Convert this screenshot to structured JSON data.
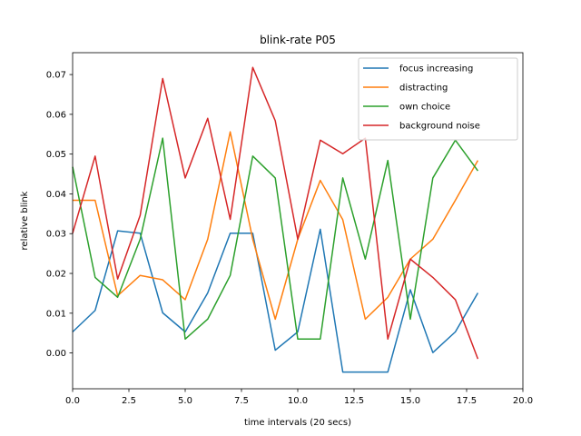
{
  "chart_data": {
    "type": "line",
    "title": "blink-rate P05",
    "xlabel": "time intervals (20 secs)",
    "ylabel": "relative blink",
    "xlim": [
      0,
      20
    ],
    "ylim": [
      -0.009,
      0.0755
    ],
    "xticks": [
      0,
      2.5,
      5,
      7.5,
      10,
      12.5,
      15,
      17.5,
      20
    ],
    "xtick_labels": [
      "0.0",
      "2.5",
      "5.0",
      "7.5",
      "10.0",
      "12.5",
      "15.0",
      "17.5",
      "20.0"
    ],
    "yticks": [
      0,
      0.01,
      0.02,
      0.03,
      0.04,
      0.05,
      0.06,
      0.07
    ],
    "ytick_labels": [
      "0.00",
      "0.01",
      "0.02",
      "0.03",
      "0.04",
      "0.05",
      "0.06",
      "0.07"
    ],
    "grid": false,
    "legend_position": "top-right",
    "x": [
      0,
      1,
      2,
      3,
      4,
      5,
      6,
      7,
      8,
      9,
      10,
      11,
      12,
      13,
      14,
      15,
      16,
      17,
      18
    ],
    "series": [
      {
        "name": "focus increasing",
        "color": "#1f77b4",
        "values": [
          0.0053,
          0.0107,
          0.0307,
          0.0301,
          0.0101,
          0.0053,
          0.0151,
          0.0301,
          0.0301,
          0.0007,
          0.0053,
          0.0311,
          -0.0048,
          -0.0048,
          -0.0048,
          0.0159,
          0.0001,
          0.0053,
          0.0151
        ]
      },
      {
        "name": "distracting",
        "color": "#ff7f0e",
        "values": [
          0.0384,
          0.0384,
          0.0144,
          0.0195,
          0.0184,
          0.0134,
          0.0286,
          0.0556,
          0.0286,
          0.0085,
          0.0286,
          0.0434,
          0.0335,
          0.0085,
          0.014,
          0.0236,
          0.0286,
          0.0384,
          0.0484
        ]
      },
      {
        "name": "own choice",
        "color": "#2ca02c",
        "values": [
          0.0468,
          0.019,
          0.014,
          0.0286,
          0.054,
          0.0035,
          0.0085,
          0.0195,
          0.0495,
          0.044,
          0.0035,
          0.0035,
          0.044,
          0.0236,
          0.0484,
          0.0085,
          0.044,
          0.0535,
          0.0458
        ]
      },
      {
        "name": "background noise",
        "color": "#d62728",
        "values": [
          0.0301,
          0.0495,
          0.0186,
          0.0346,
          0.069,
          0.044,
          0.059,
          0.0336,
          0.0718,
          0.0584,
          0.0286,
          0.0535,
          0.0501,
          0.054,
          0.0035,
          0.0236,
          0.019,
          0.0134,
          -0.0015
        ]
      }
    ]
  }
}
